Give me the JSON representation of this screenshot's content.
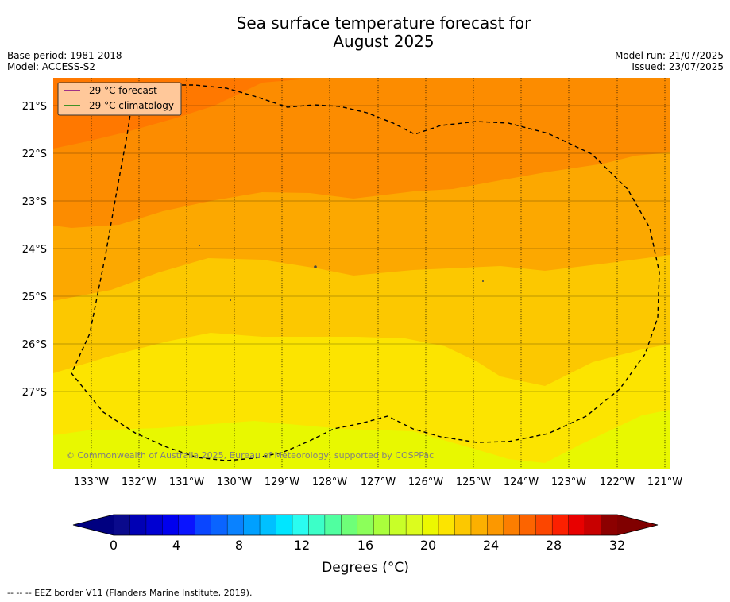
{
  "header": {
    "title_line1": "Sea surface temperature forecast for",
    "title_line2": "August 2025",
    "base_period": "Base period: 1981-2018",
    "model": "Model: ACCESS-S2",
    "model_run": "Model run: 21/07/2025",
    "issued": "Issued: 23/07/2025"
  },
  "legend": {
    "items": [
      {
        "label": "29 °C  forecast",
        "color": "#800080"
      },
      {
        "label": "29 °C  climatology",
        "color": "#008000"
      }
    ]
  },
  "map": {
    "lat_labels": [
      "21°S",
      "22°S",
      "23°S",
      "24°S",
      "25°S",
      "26°S",
      "27°S"
    ],
    "lon_labels": [
      "133°W",
      "132°W",
      "131°W",
      "130°W",
      "129°W",
      "128°W",
      "127°W",
      "126°W",
      "125°W",
      "124°W",
      "123°W",
      "122°W",
      "121°W"
    ],
    "copyright": "© Commonwealth of Australia 2025, Bureau of Meteorology, supported by COSPPac",
    "band_colors": [
      "#e8f800",
      "#fce400",
      "#fcc800",
      "#fca800",
      "#fc8c00",
      "#ff7800"
    ]
  },
  "colorbar": {
    "tick_labels": [
      "0",
      "4",
      "8",
      "12",
      "16",
      "20",
      "24",
      "28",
      "32"
    ],
    "title": "Degrees (°C)",
    "colors": [
      "#0a0a8c",
      "#0000b4",
      "#0000d2",
      "#0000ee",
      "#0a14ff",
      "#0a46ff",
      "#0a64ff",
      "#0a82ff",
      "#00a0ff",
      "#00c0ff",
      "#00e6ff",
      "#2afcf0",
      "#3cffc8",
      "#50ffa0",
      "#6eff78",
      "#8cff5a",
      "#aaff3c",
      "#c8ff28",
      "#dcfc1e",
      "#ecf800",
      "#fce400",
      "#fcc800",
      "#fcb000",
      "#fc9800",
      "#fc7e00",
      "#fc6400",
      "#fc4600",
      "#fc2000",
      "#e80000",
      "#c80000",
      "#8c0000"
    ],
    "low_extend_color": "#000080",
    "high_extend_color": "#800000"
  },
  "footer": {
    "eez_text": "--  --  -- EEZ border V11 (Flanders Marine Institute, 2019)."
  }
}
